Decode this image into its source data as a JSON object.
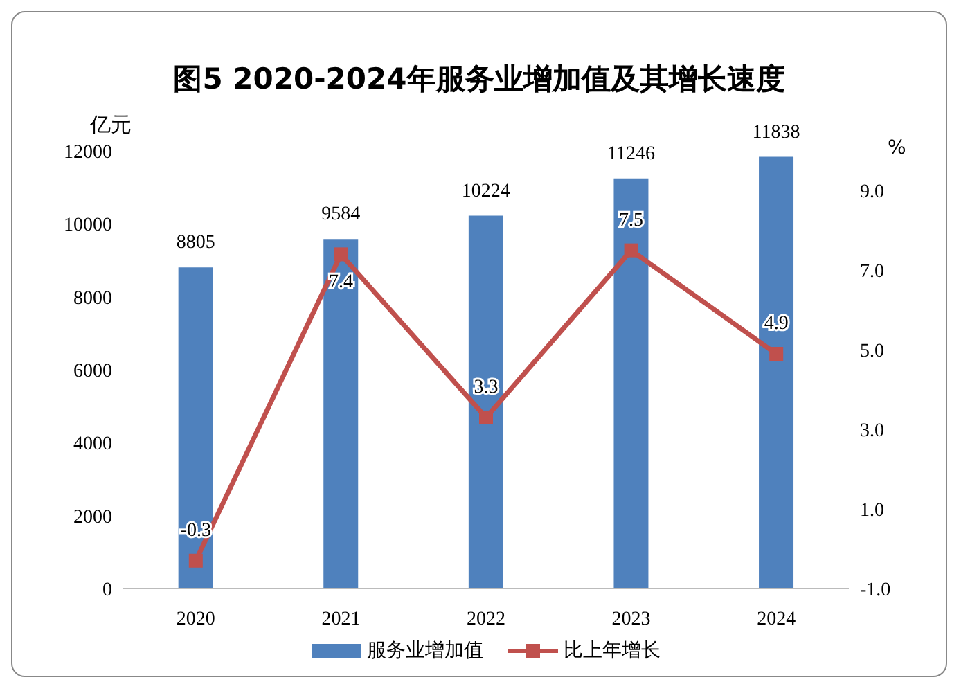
{
  "chart_data": {
    "type": "bar",
    "title": "图5  2020-2024年服务业增加值及其增长速度",
    "categories": [
      "2020",
      "2021",
      "2022",
      "2023",
      "2024"
    ],
    "series": [
      {
        "name": "服务业增加值",
        "color": "#4f81bd",
        "values": [
          8805,
          9584,
          10224,
          11246,
          11838
        ]
      },
      {
        "name": "比上年增长",
        "type": "line",
        "axis": "y2",
        "color": "#c0504d",
        "values": [
          -0.3,
          7.4,
          3.3,
          7.5,
          4.9
        ]
      }
    ],
    "ylabel": "亿元",
    "y2label": "%",
    "ylim": [
      0,
      12000
    ],
    "yticks": [
      0,
      2000,
      4000,
      6000,
      8000,
      10000,
      12000
    ],
    "y2lim": [
      -1,
      10
    ],
    "y2ticks": [
      {
        "value": -1,
        "label": "-1.0"
      },
      {
        "value": 1,
        "label": "1.0"
      },
      {
        "value": 3,
        "label": "3.0"
      },
      {
        "value": 5,
        "label": "5.0"
      },
      {
        "value": 7,
        "label": "7.0"
      },
      {
        "value": 9,
        "label": "9.0"
      }
    ],
    "data_labels": true,
    "grid": false,
    "legend": "bottom",
    "marker": "square",
    "line_style": "solid"
  }
}
